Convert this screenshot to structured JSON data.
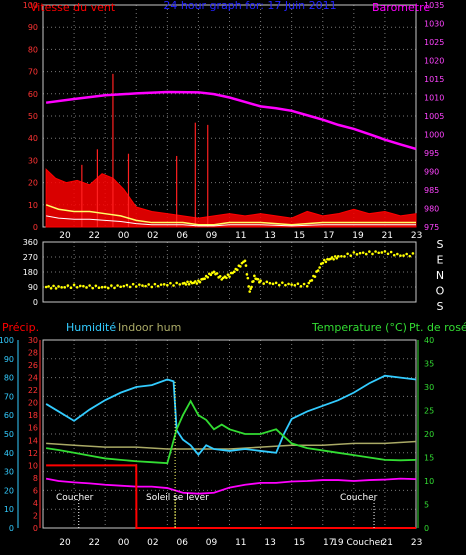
{
  "chart_data": [
    {
      "type": "line",
      "panel": "wind-barometer",
      "title": "24 hour graph for: 17 Juin 2011",
      "ylabel_left": "Vitesse du vent",
      "ylabel_right": "Barometre",
      "ylim_left": [
        0,
        100
      ],
      "ylim_right": [
        975,
        1035
      ],
      "yticks_left": [
        "0",
        "10",
        "20",
        "30",
        "40",
        "50",
        "60",
        "70",
        "80",
        "90",
        "100"
      ],
      "yticks_right": [
        "975",
        "980",
        "985",
        "990",
        "995",
        "1000",
        "1005",
        "1010",
        "1015",
        "1020",
        "1025",
        "1030",
        "1035"
      ],
      "xlim": [
        18,
        42
      ],
      "xtick_labels": [
        "20",
        "22",
        "00",
        "02",
        "06",
        "09",
        "11",
        "13",
        "15",
        "17",
        "19",
        "21",
        "23"
      ],
      "colors": {
        "wind": "#ff0000",
        "gust_spikes": "#ff2020",
        "wind_avg": "#ffff66",
        "low_wind": "#ffffff",
        "barometer": "#ff00ff"
      },
      "series": [
        {
          "role": "barometer",
          "x": [
            18.2,
            20,
            22,
            24,
            26,
            28,
            29,
            30,
            31,
            32,
            33,
            34,
            35,
            36,
            37,
            38,
            39,
            40,
            41,
            42
          ],
          "values": [
            1008.6,
            1009.6,
            1010.6,
            1011.1,
            1011.5,
            1011.4,
            1010.9,
            1010.0,
            1008.8,
            1007.6,
            1007.1,
            1006.4,
            1005.2,
            1004.0,
            1002.6,
            1001.5,
            1000.1,
            998.6,
            997.3,
            996.1
          ]
        },
        {
          "role": "wind-max",
          "x": [
            18.2,
            18.8,
            19.5,
            20.2,
            21,
            21.8,
            22.5,
            23.2,
            24,
            25,
            26,
            27,
            28,
            29,
            30,
            31,
            32,
            33,
            34,
            35,
            36,
            37,
            38,
            39,
            40,
            41,
            42
          ],
          "values": [
            26,
            22,
            20,
            21,
            19,
            24,
            22,
            17,
            9,
            7,
            6,
            5,
            4,
            5,
            6,
            5,
            6,
            5,
            4,
            7,
            5,
            6,
            8,
            6,
            7,
            5,
            6
          ]
        },
        {
          "role": "wind-avg",
          "x": [
            18.2,
            19,
            20,
            21,
            22,
            23,
            24,
            25,
            26,
            27,
            28,
            29,
            30,
            32,
            34,
            36,
            38,
            40,
            42
          ],
          "values": [
            10,
            8,
            7,
            7,
            6,
            5,
            3,
            2,
            2,
            2,
            1,
            1,
            2,
            2,
            1,
            2,
            2,
            2,
            2
          ]
        },
        {
          "role": "gust-spikes",
          "x": [
            20.5,
            21.5,
            22.5,
            23.5,
            26.6,
            27.8,
            28.6
          ],
          "values": [
            28,
            35,
            69,
            33,
            32,
            47,
            46
          ]
        }
      ]
    },
    {
      "type": "scatter",
      "panel": "wind-direction",
      "ylim": [
        0,
        360
      ],
      "yticks": [
        "0",
        "90",
        "180",
        "270",
        "360"
      ],
      "direction_labels": [
        "S",
        "E",
        "N",
        "O",
        "S"
      ],
      "xlim": [
        18,
        42
      ],
      "colors": {
        "points": "#ffff00"
      },
      "x": [
        18.2,
        19,
        20,
        21,
        22,
        23,
        24,
        25,
        26,
        27,
        27.5,
        28,
        28.5,
        29,
        29.5,
        30,
        30.5,
        31,
        31.3,
        31.6,
        32,
        33,
        34,
        35,
        35.5,
        36,
        36.5,
        37,
        38,
        39,
        40,
        41,
        42
      ],
      "values": [
        90,
        88,
        95,
        92,
        88,
        95,
        100,
        98,
        105,
        110,
        115,
        120,
        150,
        180,
        140,
        160,
        200,
        250,
        60,
        150,
        120,
        110,
        105,
        100,
        160,
        240,
        260,
        270,
        290,
        295,
        300,
        280,
        285
      ]
    },
    {
      "type": "line",
      "panel": "humidity-temperature",
      "labels": {
        "precip": "Précip.",
        "humidity": "Humidité",
        "indoor": "Indoor hum",
        "temperature": "Temperature (°C)",
        "dewpoint": "Pt. de rosée"
      },
      "yticks_humidity": [
        "0",
        "10",
        "20",
        "30",
        "40",
        "50",
        "60",
        "70",
        "80",
        "90",
        "100"
      ],
      "yticks_precip": [
        "0",
        "2",
        "4",
        "6",
        "8",
        "10",
        "12",
        "14",
        "16",
        "18",
        "20",
        "22",
        "24",
        "26",
        "28",
        "30"
      ],
      "yticks_temp": [
        "0",
        "5",
        "10",
        "15",
        "20",
        "25",
        "30",
        "35",
        "40"
      ],
      "ylim_humidity": [
        0,
        100
      ],
      "ylim_temp": [
        0,
        40
      ],
      "xlim": [
        18,
        42
      ],
      "xtick_labels": [
        "20",
        "22",
        "00",
        "02",
        "06",
        "09",
        "11",
        "13",
        "15",
        "17",
        "19 Coucher",
        "21",
        "23"
      ],
      "annotations": [
        "Coucher",
        "Soleil se lever",
        "Coucher"
      ],
      "colors": {
        "humidity": "#33ccff",
        "temperature": "#33dd33",
        "dewpoint": "#ff00ff",
        "indoor": "#aaaa66",
        "precip": "#ff0000"
      },
      "series": [
        {
          "role": "humidity",
          "x": [
            18.2,
            19,
            20,
            21,
            22,
            23,
            24,
            25,
            26,
            26.4,
            26.6,
            27,
            27.5,
            28,
            28.5,
            29,
            30,
            31,
            32,
            33,
            33.5,
            34,
            35,
            36,
            37,
            38,
            39,
            40,
            41,
            42
          ],
          "values": [
            66,
            62,
            57,
            63,
            68,
            72,
            75,
            76,
            79,
            78,
            52,
            47,
            44,
            39,
            44,
            42,
            41,
            42,
            41,
            40,
            50,
            58,
            62,
            65,
            68,
            72,
            77,
            81,
            80,
            79
          ]
        },
        {
          "role": "temperature",
          "x": [
            18.2,
            19,
            20,
            21,
            22,
            23,
            24,
            25,
            26,
            26.6,
            27,
            27.5,
            28,
            28.5,
            29,
            29.5,
            30,
            31,
            32,
            33,
            34,
            35,
            36,
            37,
            38,
            39,
            40,
            41,
            42
          ],
          "values": [
            17,
            16.6,
            16.0,
            15.4,
            14.8,
            14.5,
            14.2,
            14.0,
            13.8,
            21,
            24,
            27,
            24,
            23,
            21,
            22,
            21,
            20,
            20,
            21,
            18,
            17,
            16.5,
            16,
            15.5,
            15,
            14.5,
            14.4,
            14.5
          ]
        },
        {
          "role": "dewpoint",
          "x": [
            18.2,
            19,
            20,
            21,
            22,
            23,
            24,
            25,
            26,
            27,
            28,
            29,
            30,
            31,
            32,
            33,
            34,
            35,
            36,
            37,
            38,
            39,
            40,
            41,
            42
          ],
          "values": [
            10.5,
            10,
            9.7,
            9.5,
            9.2,
            9.0,
            8.8,
            8.8,
            8.5,
            7.5,
            7.3,
            7.5,
            8.6,
            9.2,
            9.6,
            9.6,
            9.9,
            10,
            10.2,
            10.2,
            10.0,
            10.2,
            10.3,
            10.5,
            10.4
          ]
        },
        {
          "role": "indoor-humidity",
          "x": [
            18.2,
            20,
            22,
            24,
            26,
            28,
            30,
            32,
            34,
            36,
            38,
            40,
            42
          ],
          "values": [
            45,
            44,
            43,
            43,
            42,
            42,
            42,
            43,
            44,
            44,
            45,
            45,
            46
          ]
        },
        {
          "role": "precip",
          "x": [
            18.2,
            24,
            24.01,
            42
          ],
          "values": [
            10,
            10,
            0,
            0
          ]
        }
      ]
    }
  ]
}
